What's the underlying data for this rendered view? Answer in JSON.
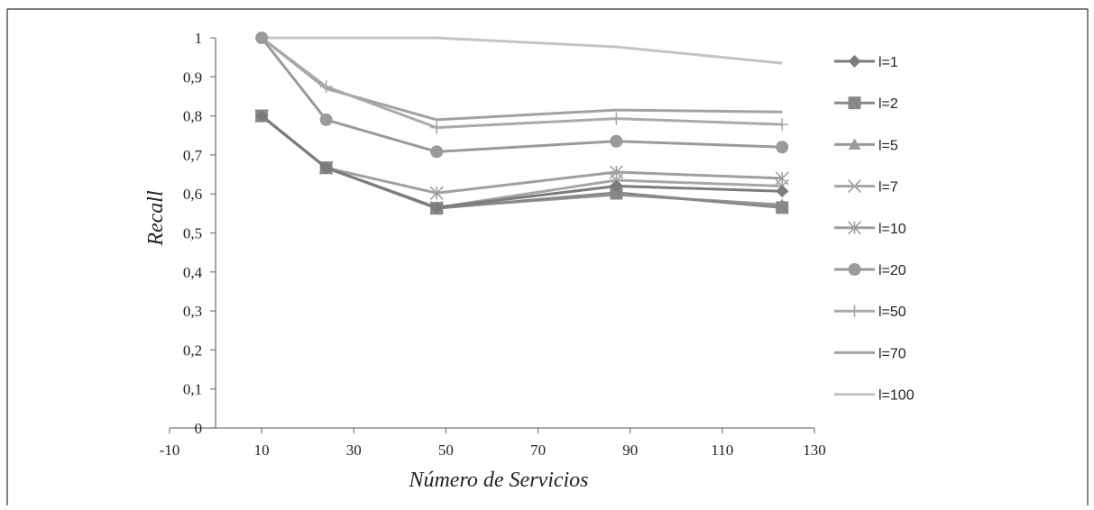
{
  "chart_data": {
    "type": "line",
    "title": "",
    "xlabel": "Número de Servicios",
    "ylabel": "Recall",
    "xlim": [
      -10,
      130
    ],
    "ylim": [
      0,
      1
    ],
    "x_ticks": [
      "-10",
      "10",
      "30",
      "50",
      "70",
      "90",
      "110",
      "130"
    ],
    "y_ticks": [
      "0",
      "0,1",
      "0,2",
      "0,3",
      "0,4",
      "0,5",
      "0,6",
      "0,7",
      "0,8",
      "0,9",
      "1"
    ],
    "grid": false,
    "legend_position": "right",
    "x": [
      10,
      24,
      48,
      87,
      123
    ],
    "series": [
      {
        "name": "l=1",
        "values": [
          0.8,
          0.667,
          0.565,
          0.62,
          0.607
        ],
        "color": "#7c7c7c",
        "marker": "diamond"
      },
      {
        "name": "l=2",
        "values": [
          0.8,
          0.667,
          0.563,
          0.603,
          0.565
        ],
        "color": "#888888",
        "marker": "square"
      },
      {
        "name": "l=5",
        "values": [
          0.8,
          0.667,
          0.565,
          0.598,
          0.572
        ],
        "color": "#9a9a9a",
        "marker": "triangle"
      },
      {
        "name": "l=7",
        "values": [
          0.8,
          0.667,
          0.565,
          0.635,
          0.62
        ],
        "color": "#a6a6a6",
        "marker": "x"
      },
      {
        "name": "l=10",
        "values": [
          0.8,
          0.667,
          0.602,
          0.656,
          0.64
        ],
        "color": "#9f9f9f",
        "marker": "asterisk"
      },
      {
        "name": "l=20",
        "values": [
          1.0,
          0.79,
          0.708,
          0.735,
          0.72
        ],
        "color": "#9a9a9a",
        "marker": "circle"
      },
      {
        "name": "l=50",
        "values": [
          1.0,
          0.875,
          0.77,
          0.793,
          0.778
        ],
        "color": "#aaaaaa",
        "marker": "plus"
      },
      {
        "name": "l=70",
        "values": [
          1.0,
          0.87,
          0.79,
          0.815,
          0.81
        ],
        "color": "#a2a2a2",
        "marker": "none"
      },
      {
        "name": "l=100",
        "values": [
          1.0,
          1.0,
          1.0,
          0.977,
          0.935
        ],
        "color": "#c4c4c4",
        "marker": "none"
      }
    ]
  }
}
